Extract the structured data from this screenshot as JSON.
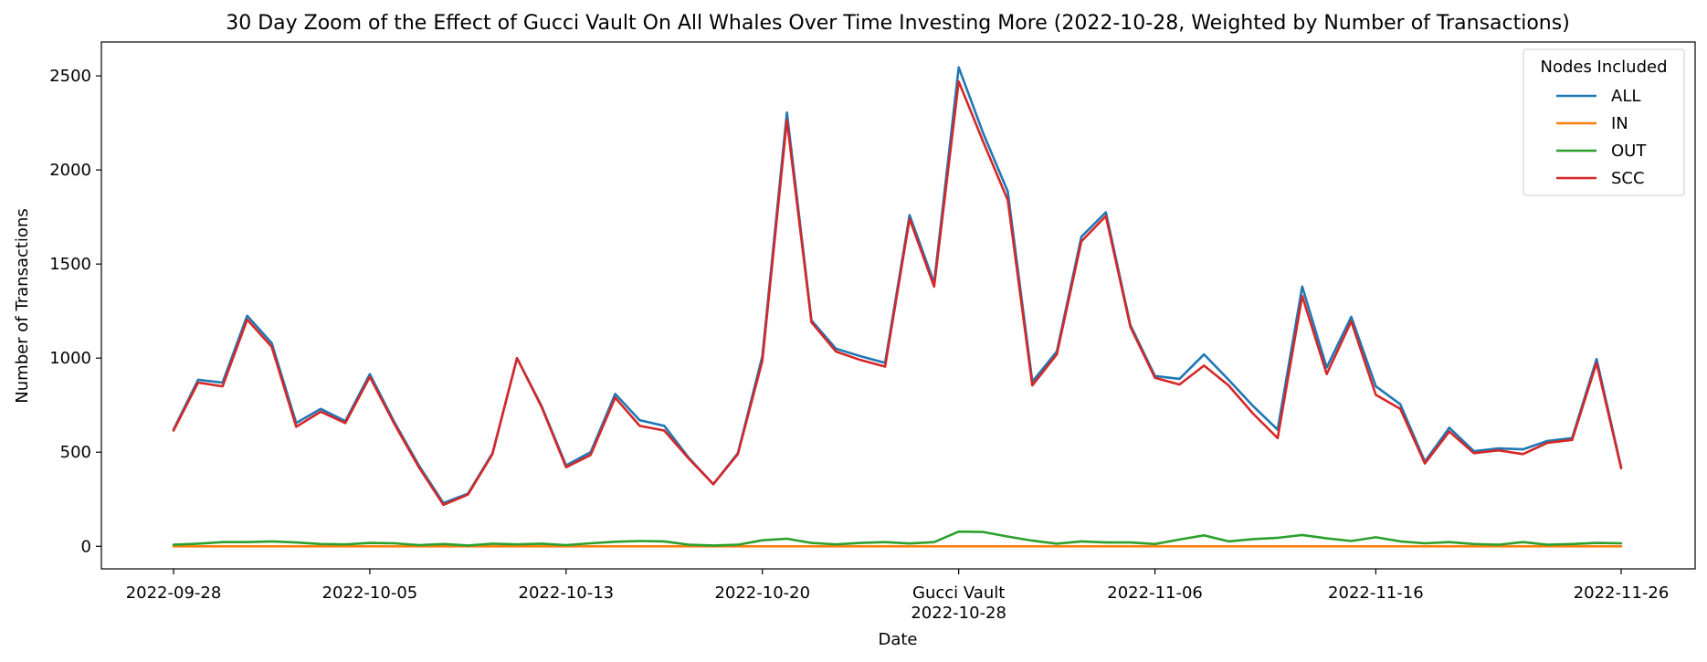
{
  "chart_data": {
    "type": "line",
    "title": "30 Day Zoom of the Effect of Gucci Vault On All Whales Over Time Investing More (2022-10-28, Weighted by Number of Transactions)",
    "xlabel": "Date",
    "ylabel": "Number of Transactions",
    "ylim": [
      -120,
      2680
    ],
    "yticks": [
      0,
      500,
      1000,
      1500,
      2000,
      2500
    ],
    "xticks": [
      {
        "label": "2022-09-28",
        "sublabel": "",
        "idx": 0
      },
      {
        "label": "2022-10-05",
        "sublabel": "",
        "idx": 8
      },
      {
        "label": "2022-10-13",
        "sublabel": "",
        "idx": 16
      },
      {
        "label": "2022-10-20",
        "sublabel": "",
        "idx": 24
      },
      {
        "label": "Gucci Vault",
        "sublabel": "2022-10-28",
        "idx": 32
      },
      {
        "label": "2022-11-06",
        "sublabel": "",
        "idx": 40
      },
      {
        "label": "2022-11-16",
        "sublabel": "",
        "idx": 49
      },
      {
        "label": "2022-11-26",
        "sublabel": "",
        "idx": 59
      }
    ],
    "x_count": 60,
    "legend": {
      "title": "Nodes Included",
      "position": "top-right"
    },
    "grid": false,
    "series": [
      {
        "name": "ALL",
        "color": "#1f77b4",
        "values": [
          620,
          885,
          870,
          1225,
          1080,
          655,
          730,
          665,
          915,
          660,
          430,
          230,
          280,
          495,
          1000,
          745,
          430,
          500,
          810,
          670,
          640,
          470,
          330,
          495,
          1010,
          2305,
          1200,
          1050,
          1010,
          975,
          1760,
          1400,
          2545,
          2195,
          1885,
          875,
          1035,
          1645,
          1775,
          1175,
          905,
          890,
          1020,
          885,
          745,
          620,
          1380,
          950,
          1220,
          850,
          755,
          450,
          630,
          505,
          520,
          515,
          560,
          575,
          995,
          420
        ]
      },
      {
        "name": "IN",
        "color": "#ff7f0e",
        "values": [
          0,
          0,
          0,
          0,
          0,
          0,
          0,
          0,
          0,
          0,
          0,
          0,
          0,
          0,
          0,
          0,
          0,
          0,
          0,
          0,
          0,
          0,
          0,
          0,
          0,
          0,
          0,
          0,
          0,
          0,
          0,
          0,
          0,
          0,
          0,
          0,
          0,
          0,
          0,
          0,
          0,
          0,
          0,
          0,
          0,
          0,
          0,
          0,
          0,
          0,
          0,
          0,
          0,
          0,
          0,
          0,
          0,
          0,
          0,
          0
        ]
      },
      {
        "name": "OUT",
        "color": "#2ca02c",
        "values": [
          8,
          14,
          22,
          22,
          26,
          20,
          12,
          10,
          18,
          16,
          6,
          12,
          4,
          14,
          10,
          14,
          6,
          16,
          24,
          28,
          26,
          8,
          4,
          8,
          32,
          40,
          18,
          10,
          18,
          22,
          15,
          22,
          78,
          76,
          52,
          30,
          14,
          26,
          20,
          20,
          12,
          36,
          58,
          26,
          38,
          45,
          60,
          42,
          28,
          48,
          26,
          16,
          22,
          12,
          8,
          22,
          8,
          12,
          18,
          16
        ]
      },
      {
        "name": "SCC",
        "color": "#d62728",
        "values": [
          615,
          870,
          850,
          1205,
          1060,
          635,
          715,
          655,
          900,
          650,
          420,
          220,
          275,
          490,
          1000,
          740,
          420,
          485,
          790,
          640,
          615,
          465,
          330,
          490,
          985,
          2265,
          1190,
          1035,
          990,
          955,
          1740,
          1380,
          2470,
          2150,
          1840,
          855,
          1020,
          1620,
          1755,
          1165,
          895,
          860,
          960,
          855,
          705,
          575,
          1330,
          915,
          1195,
          805,
          730,
          440,
          610,
          495,
          510,
          490,
          550,
          565,
          975,
          415
        ]
      }
    ]
  }
}
